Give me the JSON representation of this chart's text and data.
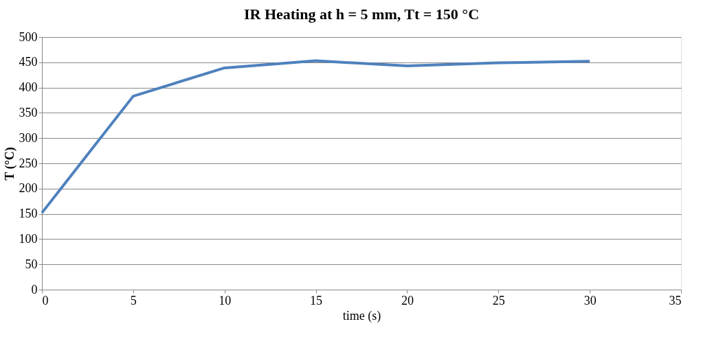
{
  "chart_data": {
    "type": "line",
    "title": "IR Heating at h = 5 mm, Tt = 150 °C",
    "xlabel": "time (s)",
    "ylabel": "T (°C)",
    "x": [
      0,
      5,
      10,
      15,
      20,
      25,
      30
    ],
    "series": [
      {
        "color": "#4f81bd",
        "values": [
          152,
          383,
          439,
          453,
          443,
          449,
          452
        ]
      }
    ],
    "xlim": [
      0,
      35
    ],
    "xticks": [
      0,
      5,
      10,
      15,
      20,
      25,
      30,
      35
    ],
    "ylim": [
      0,
      500
    ],
    "yticks": [
      0,
      50,
      100,
      150,
      200,
      250,
      300,
      350,
      400,
      450,
      500
    ],
    "grid": "y",
    "marker": "none",
    "line_style": "solid"
  }
}
